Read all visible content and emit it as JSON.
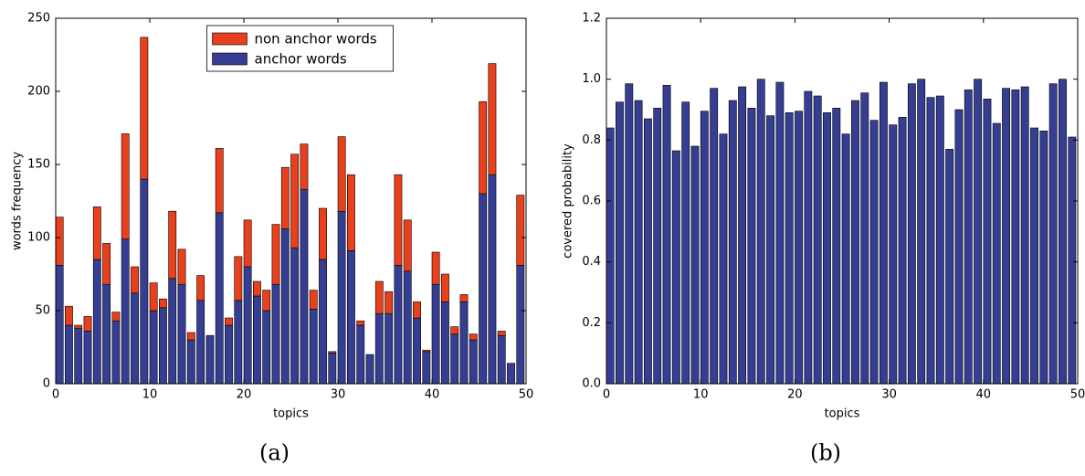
{
  "chart_data": [
    {
      "type": "stacked_bar",
      "caption": "(a)",
      "xlabel": "topics",
      "ylabel": "words frequency",
      "x": [
        0,
        1,
        2,
        3,
        4,
        5,
        6,
        7,
        8,
        9,
        10,
        11,
        12,
        13,
        14,
        15,
        16,
        17,
        18,
        19,
        20,
        21,
        22,
        23,
        24,
        25,
        26,
        27,
        28,
        29,
        30,
        31,
        32,
        33,
        34,
        35,
        36,
        37,
        38,
        39,
        40,
        41,
        42,
        43,
        44,
        45,
        46,
        47,
        48,
        49
      ],
      "series": [
        {
          "name": "non anchor words",
          "color": "#e8401c",
          "values": [
            33,
            13,
            2,
            10,
            36,
            28,
            6,
            72,
            18,
            97,
            19,
            6,
            46,
            24,
            5,
            17,
            0,
            44,
            5,
            30,
            32,
            10,
            14,
            41,
            42,
            64,
            31,
            13,
            35,
            1,
            51,
            52,
            3,
            0,
            22,
            15,
            62,
            35,
            11,
            1,
            22,
            19,
            5,
            5,
            4,
            63,
            76,
            3,
            0,
            48
          ]
        },
        {
          "name": "anchor words",
          "color": "#353e92",
          "values": [
            81,
            40,
            38,
            36,
            85,
            68,
            43,
            99,
            62,
            140,
            50,
            52,
            72,
            68,
            30,
            57,
            33,
            117,
            40,
            57,
            80,
            60,
            50,
            68,
            106,
            93,
            133,
            51,
            85,
            21,
            118,
            91,
            40,
            20,
            48,
            48,
            81,
            77,
            45,
            22,
            68,
            56,
            34,
            56,
            30,
            130,
            143,
            33,
            14,
            81
          ]
        }
      ],
      "xlim": [
        0,
        50
      ],
      "xticks": [
        0,
        10,
        20,
        30,
        40,
        50
      ],
      "ylim": [
        0,
        250
      ],
      "yticks": [
        0,
        50,
        100,
        150,
        200,
        250
      ],
      "legend": "upper center",
      "grid": false
    },
    {
      "type": "bar",
      "caption": "(b)",
      "xlabel": "topics",
      "ylabel": "covered probability",
      "x": [
        0,
        1,
        2,
        3,
        4,
        5,
        6,
        7,
        8,
        9,
        10,
        11,
        12,
        13,
        14,
        15,
        16,
        17,
        18,
        19,
        20,
        21,
        22,
        23,
        24,
        25,
        26,
        27,
        28,
        29,
        30,
        31,
        32,
        33,
        34,
        35,
        36,
        37,
        38,
        39,
        40,
        41,
        42,
        43,
        44,
        45,
        46,
        47,
        48,
        49
      ],
      "color": "#353e92",
      "values": [
        0.84,
        0.925,
        0.985,
        0.93,
        0.87,
        0.905,
        0.98,
        0.765,
        0.925,
        0.78,
        0.895,
        0.97,
        0.82,
        0.93,
        0.975,
        0.905,
        1.0,
        0.88,
        0.99,
        0.89,
        0.895,
        0.96,
        0.945,
        0.89,
        0.905,
        0.82,
        0.93,
        0.955,
        0.865,
        0.99,
        0.85,
        0.875,
        0.985,
        1.0,
        0.94,
        0.945,
        0.77,
        0.9,
        0.965,
        1.0,
        0.935,
        0.855,
        0.97,
        0.965,
        0.975,
        0.84,
        0.83,
        0.985,
        1.0,
        0.81
      ],
      "xlim": [
        0,
        50
      ],
      "xticks": [
        0,
        10,
        20,
        30,
        40,
        50
      ],
      "ylim": [
        0,
        1.2
      ],
      "yticks": [
        {
          "value": 0,
          "label": "0.0"
        },
        0.2,
        0.4,
        0.6,
        0.8,
        {
          "value": 1,
          "label": "1.0"
        },
        1.2
      ],
      "grid": false
    }
  ]
}
